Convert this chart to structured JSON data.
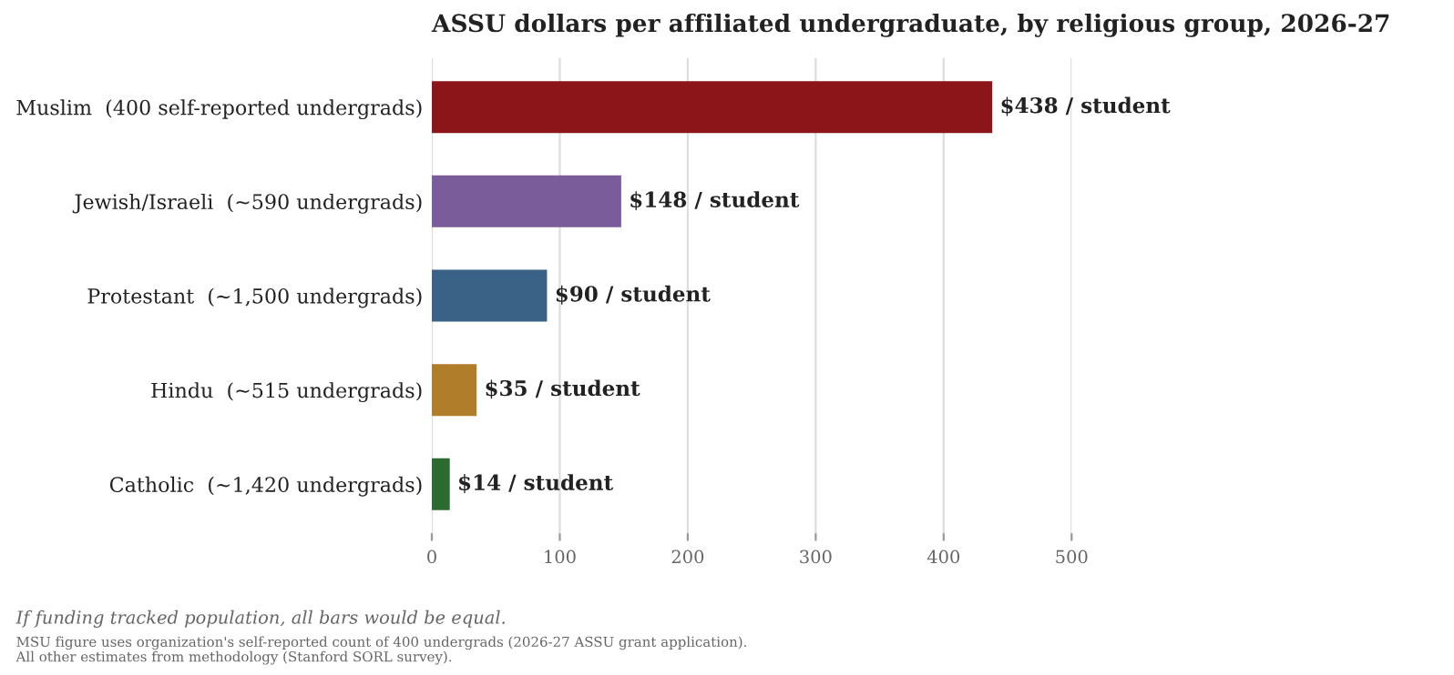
{
  "chart_data": {
    "type": "bar",
    "orientation": "horizontal",
    "title": "ASSU dollars per affiliated undergraduate, by religious group, 2026-27",
    "categories": [
      "Muslim  (400 self-reported undergrads)",
      "Jewish/Israeli  (~590 undergrads)",
      "Protestant  (~1,500 undergrads)",
      "Hindu  (~515 undergrads)",
      "Catholic  (~1,420 undergrads)"
    ],
    "values": [
      438,
      148,
      90,
      35,
      14
    ],
    "colors": [
      "#8b1518",
      "#7b5c9b",
      "#3a6186",
      "#b07d2b",
      "#2c6b2f"
    ],
    "value_labels": [
      "$438 / student",
      "$148 / student",
      "$90 / student",
      "$35 / student",
      "$14 / student"
    ],
    "xlim": [
      0,
      500
    ],
    "xticks": [
      0,
      100,
      200,
      300,
      400,
      500
    ],
    "grid": "x",
    "annotations": [
      "If funding tracked population, all bars would be equal.",
      "MSU figure uses organization's self-reported count of 400 undergrads (2026-27 ASSU grant application).",
      "All other estimates from methodology (Stanford SORL survey)."
    ]
  }
}
